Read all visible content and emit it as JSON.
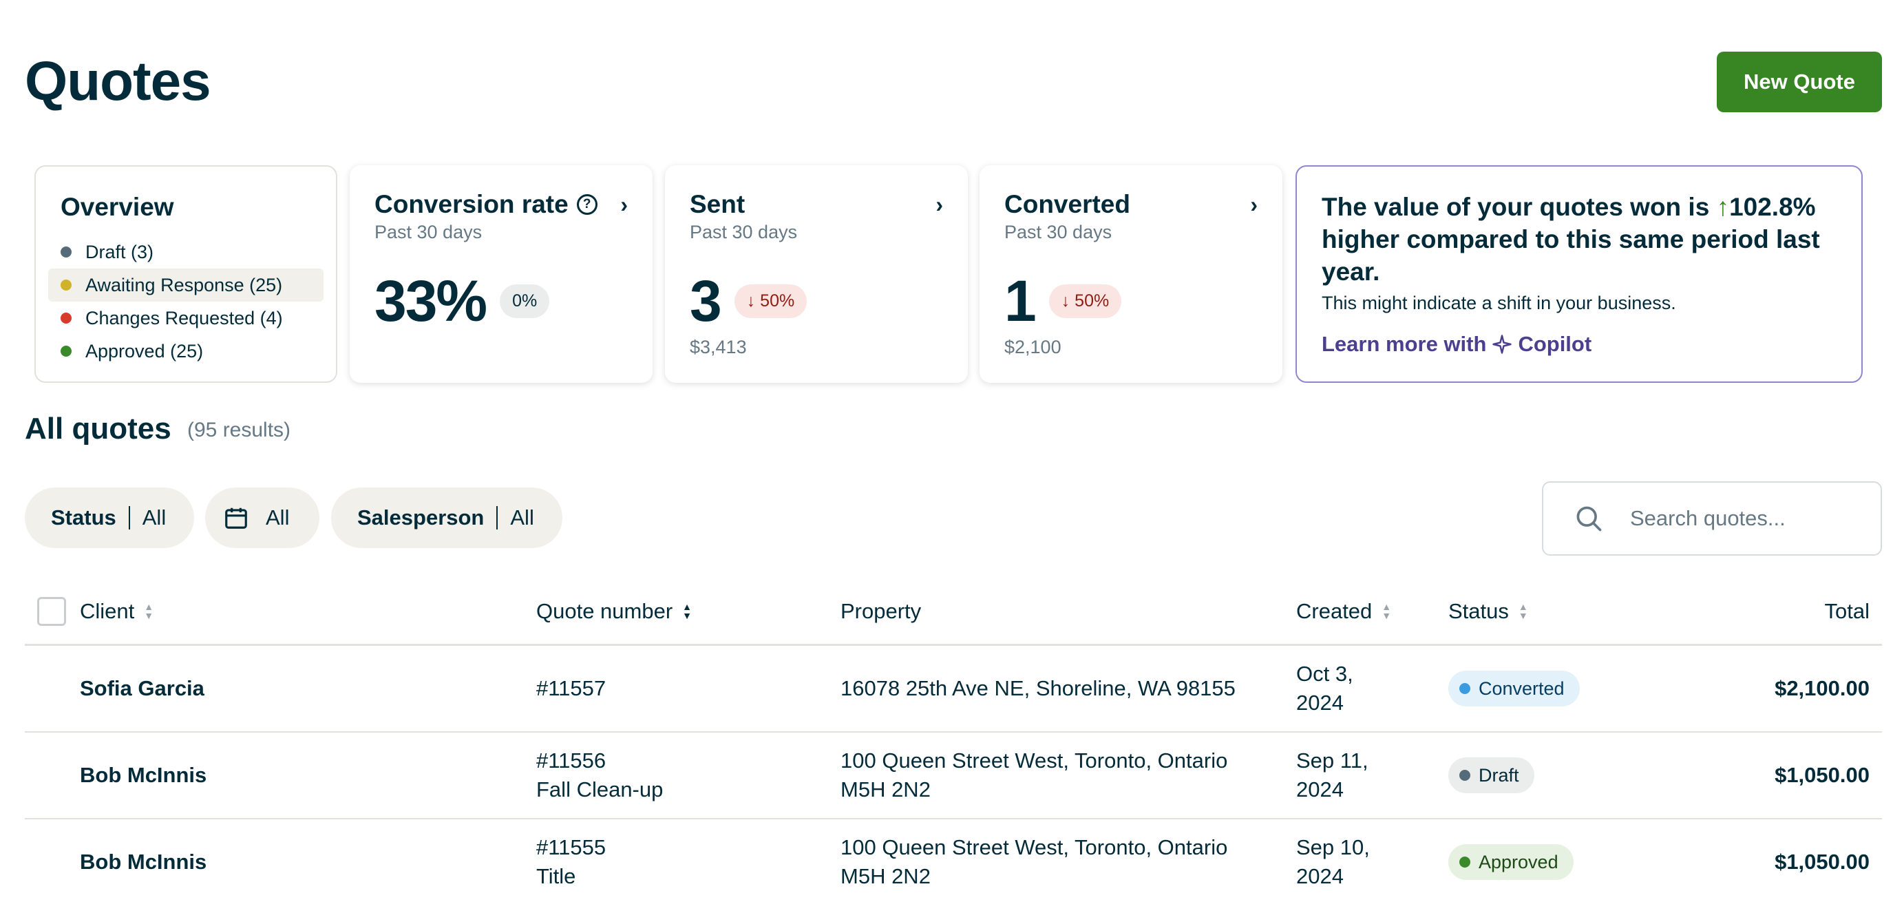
{
  "header": {
    "title": "Quotes",
    "new_quote_label": "New Quote"
  },
  "overview": {
    "title": "Overview",
    "items": [
      {
        "label": "Draft (3)",
        "color": "#556b7a"
      },
      {
        "label": "Awaiting Response (25)",
        "color": "#d1b22b"
      },
      {
        "label": "Changes Requested (4)",
        "color": "#d63b2b"
      },
      {
        "label": "Approved (25)",
        "color": "#3a8a2b"
      }
    ]
  },
  "metrics": {
    "conversion": {
      "title": "Conversion rate",
      "subtitle": "Past 30 days",
      "value": "33%",
      "badge": "0%"
    },
    "sent": {
      "title": "Sent",
      "subtitle": "Past 30 days",
      "value": "3",
      "badge": "50%",
      "amount": "$3,413"
    },
    "converted": {
      "title": "Converted",
      "subtitle": "Past 30 days",
      "value": "1",
      "badge": "50%",
      "amount": "$2,100"
    }
  },
  "insight": {
    "title_before": "The value of your quotes won is ",
    "arrow": "↑",
    "title_pct": "102.8%",
    "title_after": " higher compared to this same period last year.",
    "subtitle": "This might indicate a shift in your business.",
    "link_prefix": "Learn more with ",
    "link_brand": "Copilot"
  },
  "list": {
    "title": "All quotes",
    "count": "(95 results)",
    "filters": {
      "status_label": "Status",
      "status_value": "All",
      "date_value": "All",
      "salesperson_label": "Salesperson",
      "salesperson_value": "All"
    },
    "search_placeholder": "Search quotes..."
  },
  "table": {
    "columns": {
      "client": "Client",
      "quote_number": "Quote number",
      "property": "Property",
      "created": "Created",
      "status": "Status",
      "total": "Total"
    },
    "rows": [
      {
        "client": "Sofia Garcia",
        "quote_number": "#11557",
        "quote_title": "",
        "property_line1": "16078 25th Ave NE, Shoreline, WA 98155",
        "property_line2": "",
        "created_line1": "Oct 3,",
        "created_line2": "2024",
        "status": "Converted",
        "total": "$2,100.00"
      },
      {
        "client": "Bob McInnis",
        "quote_number": "#11556",
        "quote_title": "Fall Clean-up",
        "property_line1": "100 Queen Street West, Toronto, Ontario",
        "property_line2": "M5H 2N2",
        "created_line1": "Sep 11,",
        "created_line2": "2024",
        "status": "Draft",
        "total": "$1,050.00"
      },
      {
        "client": "Bob McInnis",
        "quote_number": "#11555",
        "quote_title": "Title",
        "property_line1": "100 Queen Street West, Toronto, Ontario",
        "property_line2": "M5H 2N2",
        "created_line1": "Sep 10,",
        "created_line2": "2024",
        "status": "Approved",
        "total": "$1,050.00"
      }
    ]
  },
  "status_colors": {
    "converted": {
      "bg": "#e3f1fb",
      "dot": "#3b9be0",
      "text": "#063e63"
    },
    "draft": {
      "bg": "#ebecec",
      "dot": "#556b7a",
      "text": "#032b3a"
    },
    "approved": {
      "bg": "#e6f1e1",
      "dot": "#3a8a2b",
      "text": "#1d4a14"
    }
  },
  "brand_colors": {
    "primary_green": "#388523",
    "copilot_purple": "#4c3f8f",
    "ink": "#032b3a"
  }
}
